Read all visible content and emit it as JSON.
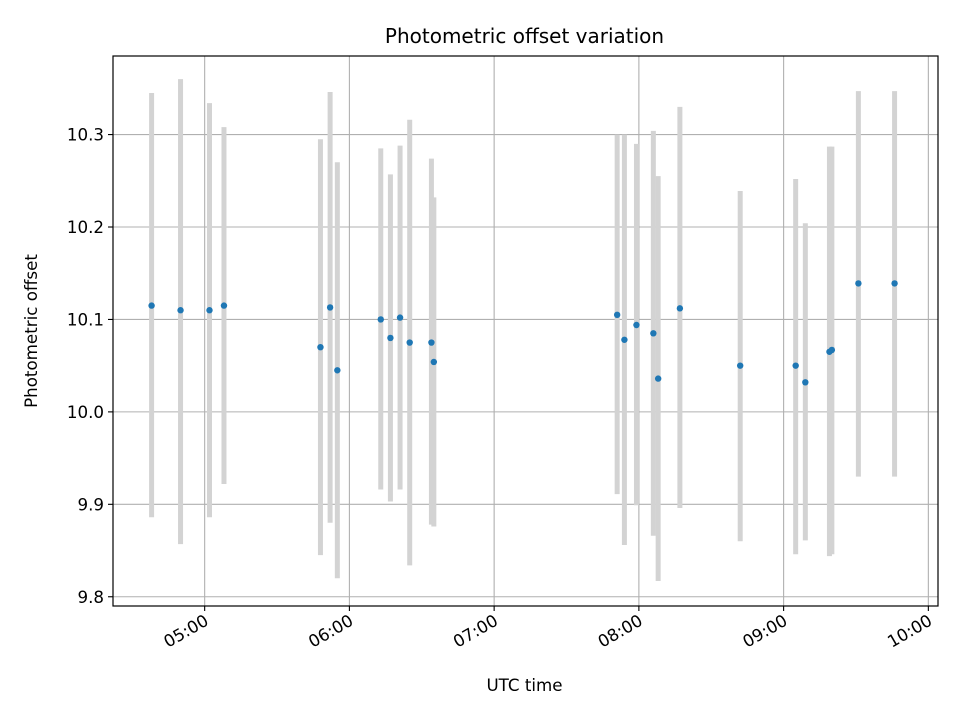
{
  "chart_data": {
    "type": "scatter",
    "title": "Photometric offset variation",
    "xlabel": "UTC time",
    "ylabel": "Photometric offset",
    "x_tick_labels": [
      "05:00",
      "06:00",
      "07:00",
      "08:00",
      "09:00",
      "10:00"
    ],
    "y_tick_labels": [
      "9.8",
      "9.9",
      "10.0",
      "10.1",
      "10.2",
      "10.3"
    ],
    "y_ticks": [
      9.8,
      9.9,
      10.0,
      10.1,
      10.2,
      10.3
    ],
    "xlim": [
      "04:22",
      "10:04"
    ],
    "ylim": [
      9.79,
      10.385
    ],
    "grid": true,
    "legend": "none",
    "colors": {
      "points": "#1f77b4",
      "error_bars": "#d3d3d3",
      "grid": "#b0b0b0",
      "axes": "#000000"
    },
    "series": [
      {
        "x": [
          "04:38",
          "04:50",
          "05:02",
          "05:08",
          "05:48",
          "05:52",
          "05:55",
          "06:13",
          "06:17",
          "06:21",
          "06:25",
          "06:34",
          "06:35",
          "07:51",
          "07:54",
          "07:59",
          "08:06",
          "08:08",
          "08:17",
          "08:42",
          "09:05",
          "09:09",
          "09:19",
          "09:20",
          "09:31",
          "09:46"
        ],
        "y": [
          10.115,
          10.11,
          10.11,
          10.115,
          10.07,
          10.113,
          10.045,
          10.1,
          10.08,
          10.102,
          10.075,
          10.075,
          10.054,
          10.105,
          10.078,
          10.094,
          10.085,
          10.036,
          10.112,
          10.05,
          10.05,
          10.032,
          10.065,
          10.067,
          10.139,
          10.139
        ],
        "yerr_low": [
          9.886,
          9.857,
          9.886,
          9.922,
          9.845,
          9.88,
          9.82,
          9.916,
          9.903,
          9.916,
          9.834,
          9.878,
          9.876,
          9.911,
          9.856,
          9.899,
          9.866,
          9.817,
          9.896,
          9.86,
          9.846,
          9.861,
          9.844,
          9.846,
          9.93,
          9.93
        ],
        "yerr_high": [
          10.345,
          10.36,
          10.334,
          10.308,
          10.295,
          10.346,
          10.27,
          10.285,
          10.257,
          10.288,
          10.316,
          10.274,
          10.232,
          10.3,
          10.3,
          10.29,
          10.304,
          10.255,
          10.33,
          10.239,
          10.252,
          10.204,
          10.287,
          10.287,
          10.347,
          10.347
        ]
      }
    ]
  }
}
